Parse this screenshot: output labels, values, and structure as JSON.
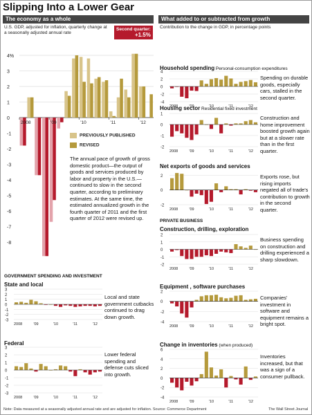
{
  "title": "Slipping Into a Lower Gear",
  "left_header": "The economy as a whole",
  "right_header": "What added to or subtracted from growth",
  "gdp_subtitle": "U.S. GDP, adjusted for inflation, quarterly change at a seasonally adjusted annual rate",
  "right_subtitle": "Contribution to the change in GDP, in percentage points",
  "second_quarter_label": "Second quarter:",
  "second_quarter_value": "+1.5%",
  "legend_previous": "PREVIOUSLY PUBLISHED",
  "legend_revised": "REVISED",
  "gdp_note": "The annual pace of growth of gross domestic product—the output of goods and services produced by labor and property in the U.S.—continued to slow in the second quarter, according to preliminary estimates. At the same time, the estimated annualized growth in the fourth quarter of 2011 and the first quarter of 2012 were revised up.",
  "gov_header": "GOVERNMENT SPENDING AND INVESTMENT",
  "private_header": "PRIVATE BUSINESS",
  "footer_note": "Note: Data measured at a seasonally adjusted annual rate and are adjusted for inflation.   Source: Commerce Department",
  "footer_source": "The Wall Street Journal",
  "colors": {
    "red": "#b51a2c",
    "gold": "#b59a3c",
    "lightgold": "#d8c48a",
    "dark": "#444444"
  },
  "chart_data": [
    {
      "type": "bar",
      "name_printed": "",
      "categories": [
        "Q1 2008",
        "Q2 2008",
        "Q3 2008",
        "Q4 2008",
        "Q1 2009",
        "Q2 2009",
        "Q3 2009",
        "Q4 2009",
        "Q1 2010",
        "Q2 2010",
        "Q3 2010",
        "Q4 2010",
        "Q1 2011",
        "Q2 2011",
        "Q3 2011",
        "Q4 2011",
        "Q1 2012",
        "Q2 2012"
      ],
      "x_tick_labels": [
        "2008",
        "'09",
        "'10",
        "'11",
        "'12"
      ],
      "y_tick_labels": [
        "4%",
        "3",
        "2",
        "1",
        "0",
        "-1",
        "-2",
        "-3",
        "-4",
        "-5",
        "-6",
        "-7",
        "-8"
      ],
      "ylim": [
        -8.9,
        4.6
      ],
      "series": [
        {
          "name": "PREVIOUSLY PUBLISHED",
          "values": [
            -1.8,
            1.3,
            -3.7,
            -8.9,
            -6.7,
            -0.7,
            1.7,
            3.8,
            3.9,
            3.8,
            2.5,
            2.3,
            0.4,
            1.3,
            1.8,
            4.1,
            2.0,
            null
          ]
        },
        {
          "name": "REVISED",
          "values": [
            -1.8,
            1.3,
            -3.7,
            -8.9,
            -5.3,
            -0.3,
            1.4,
            4.0,
            2.3,
            2.2,
            2.6,
            2.4,
            0.1,
            2.5,
            1.3,
            4.1,
            2.0,
            1.5
          ]
        }
      ]
    },
    {
      "type": "bar",
      "title": "Household spending",
      "subtitle": "Personal-consumption expenditures",
      "note": "Spending on durable goods, especially cars, stalled in the second quarter.",
      "x_tick_labels": [
        "2008",
        "'09",
        "'10",
        "'11",
        "'12"
      ],
      "y_tick_labels": [
        "4",
        "2",
        "0",
        "-2",
        "-4"
      ],
      "ylim": [
        -4,
        4
      ],
      "values": [
        -0.5,
        -0.1,
        -2.7,
        -3.1,
        -1.1,
        -1.2,
        1.6,
        0.7,
        1.9,
        2.2,
        1.8,
        2.8,
        2.1,
        0.7,
        1.2,
        1.4,
        1.7,
        1.1
      ]
    },
    {
      "type": "bar",
      "title": "Housing sector",
      "subtitle": "Residential fixed investment",
      "note": "Construction and home improvement boosted growth again but at a slower rate than in the first quarter.",
      "x_tick_labels": [
        "2008",
        "'09",
        "'10",
        "'11",
        "'12"
      ],
      "y_tick_labels": [
        "1",
        "0",
        "-1",
        "-2"
      ],
      "ylim": [
        -2,
        1
      ],
      "values": [
        -1.1,
        -0.6,
        -0.8,
        -1.2,
        -1.4,
        -0.9,
        0.4,
        0.0,
        -0.4,
        0.6,
        -0.8,
        0.1,
        -0.1,
        0.1,
        0.1,
        0.3,
        0.4,
        0.2
      ]
    },
    {
      "type": "bar",
      "title": "Net exports of goods and services",
      "subtitle": "",
      "note": "Exports rose, but rising imports negated all of trade's contribution to growth in the second quarter.",
      "x_tick_labels": [
        "2008",
        "'09",
        "'10",
        "'11",
        "'12"
      ],
      "y_tick_labels": [
        "2",
        "0",
        "-2"
      ],
      "ylim": [
        -2,
        2.5
      ],
      "values": [
        1.6,
        2.3,
        2.2,
        0.0,
        -0.9,
        -0.5,
        -0.7,
        -1.9,
        -1.6,
        0.9,
        -0.3,
        0.5,
        0.1,
        0.1,
        -0.6,
        0.1,
        -0.1,
        -0.3
      ]
    },
    {
      "type": "bar",
      "title": "Construction, drilling, exploration",
      "subtitle": "",
      "note": "Business spending on construction and drilling experienced a sharp slowdown.",
      "x_tick_labels": [
        "2008",
        "'09",
        "'10",
        "'11",
        "'12"
      ],
      "y_tick_labels": [
        "2",
        "1",
        "0",
        "-1",
        "-2"
      ],
      "ylim": [
        -2,
        2
      ],
      "values": [
        -0.3,
        -0.1,
        -0.9,
        -1.3,
        -1.3,
        -1.0,
        -1.0,
        -0.8,
        -0.9,
        -0.6,
        -0.3,
        -0.4,
        -0.5,
        0.7,
        0.4,
        0.2,
        0.5,
        0.0
      ]
    },
    {
      "type": "bar",
      "title": "Equipment , software purchases",
      "subtitle": "",
      "note": "Companies' investment in software and equipment remains a bright spot.",
      "x_tick_labels": [
        "2008",
        "'09",
        "'10",
        "'11",
        "'12"
      ],
      "y_tick_labels": [
        "2",
        "0",
        "-2",
        "-4"
      ],
      "ylim": [
        -4,
        2
      ],
      "values": [
        -0.4,
        -1.0,
        -2.4,
        -3.2,
        -1.2,
        0.3,
        1.0,
        1.2,
        1.2,
        1.3,
        0.8,
        0.6,
        0.7,
        1.1,
        1.2,
        0.3,
        0.4,
        0.5
      ]
    },
    {
      "type": "bar",
      "title": "Change in inventories",
      "subtitle": "(when produced)",
      "note": "Inventories increased, but that was a sign of a consumer pullback.",
      "x_tick_labels": [
        "2008",
        "'09",
        "'10",
        "'11",
        "'12"
      ],
      "y_tick_labels": [
        "6",
        "4",
        "2",
        "0",
        "-2",
        "-4"
      ],
      "ylim": [
        -4,
        6
      ],
      "values": [
        -1.0,
        -2.0,
        -2.6,
        -0.8,
        -1.6,
        -0.7,
        0.8,
        5.5,
        2.2,
        0.5,
        1.8,
        -2.0,
        0.4,
        -0.3,
        -1.4,
        2.4,
        -0.4,
        0.3
      ]
    },
    {
      "type": "bar",
      "title": "State and local",
      "subtitle": "",
      "note": "Local and state government cutbacks continued to drag down growth.",
      "x_tick_labels": [
        "2008",
        "'09",
        "'10",
        "'11",
        "'12"
      ],
      "y_tick_labels": [
        "3",
        "2",
        "1",
        "0",
        "-1",
        "-2",
        "-3"
      ],
      "ylim": [
        -3,
        3
      ],
      "values": [
        0.4,
        0.5,
        0.3,
        0.9,
        0.6,
        0.2,
        -0.1,
        0.0,
        -0.3,
        -0.5,
        -0.2,
        -0.3,
        -0.5,
        -0.4,
        -0.3,
        -0.3,
        -0.4,
        -0.3
      ]
    },
    {
      "type": "bar",
      "title": "Federal",
      "subtitle": "",
      "note": "Lower federal spending and defense cuts sliced into growth.",
      "x_tick_labels": [
        "2008",
        "'09",
        "'10",
        "'11",
        "'12"
      ],
      "y_tick_labels": [
        "3",
        "2",
        "1",
        "0",
        "-1",
        "-2",
        "-3"
      ],
      "ylim": [
        -3,
        3
      ],
      "values": [
        0.5,
        0.4,
        0.9,
        0.2,
        -0.2,
        0.8,
        0.5,
        0.0,
        0.1,
        0.6,
        0.5,
        -0.2,
        -0.8,
        0.1,
        -0.3,
        -0.6,
        -0.3,
        -0.2
      ]
    }
  ]
}
